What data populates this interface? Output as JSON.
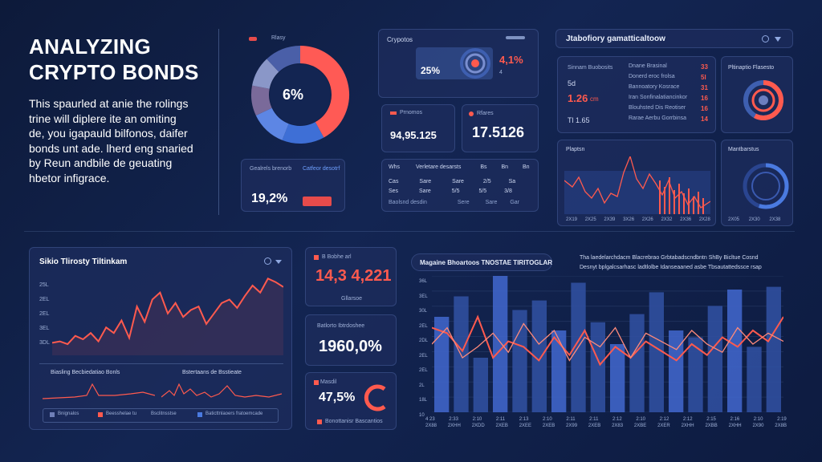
{
  "hero": {
    "title_line1": "ANALYZING",
    "title_line2": "CRYPTO BONDS",
    "body_lines": [
      "This spaurled at anie the rolings",
      "trine will diplere ite an omiting",
      "de, you igapauld bilfonos, daifer",
      "bonds unt ade. lherd eng snaried",
      "by Reun andbile de geuating",
      "hbetor infigrace."
    ]
  },
  "donut_panel": {
    "legend": "Rlasy",
    "center_value": "6%",
    "stat1": {
      "label": "Gealrels brenorb",
      "value": "19,2%"
    },
    "stat2": {
      "label": "Catfeor desotrf",
      "button": ""
    }
  },
  "crypto_panel": {
    "title": "Crypotos",
    "value_left": "25%",
    "value_right": "4,1%",
    "value_right_prefix": "4"
  },
  "metric1": {
    "label": "Prnomos",
    "value": "94,95.125"
  },
  "metric2": {
    "label": "Rfares",
    "value": "17.5126"
  },
  "mini_table": {
    "headers": [
      "Whs",
      "Verletare desarsts",
      "Bs",
      "Bn",
      "Bn"
    ],
    "rows": [
      [
        "Cas",
        "Sare",
        "Sare",
        "2/5",
        "Sa"
      ],
      [
        "Ses",
        "Sare",
        "5/5",
        "5/5",
        "3/8"
      ],
      [
        "Baolsnd desdin",
        "",
        "Sere",
        "Sare",
        "Gar"
      ]
    ]
  },
  "top_right_header": {
    "title": "Jtabofiory gamatticaltoow"
  },
  "ledger": {
    "summary_label": "Sinnam Buobosits",
    "small_value": "5d",
    "value_red": "1.26",
    "value_suffix": "cm",
    "footer": "Tl 1.65",
    "rows": [
      {
        "label": "Dnane Brasinal",
        "value": "33"
      },
      {
        "label": "Donerd eroc frolsa",
        "value": "5l"
      },
      {
        "label": "Bannoatory Kosrace",
        "value": "31"
      },
      {
        "label": "Iran Sonfinalatiancinkor",
        "value": "16"
      },
      {
        "label": "Blouhsted Dis Reotiser",
        "value": "16"
      },
      {
        "label": "Rarae Aerbu Gorrbinsa",
        "value": "14"
      }
    ]
  },
  "mini_donut_panel": {
    "title": "Pltinaptio Flasesto"
  },
  "line_panel_small": {
    "title": "Plaptsn",
    "x_ticks": [
      "2X19",
      "2X25",
      "2X39",
      "3X26",
      "2X26",
      "2X32",
      "2X36",
      "2X28"
    ]
  },
  "gauge_panel": {
    "title": "Mantbarstus",
    "x_ticks": [
      "2X05",
      "2X30",
      "2X38"
    ]
  },
  "left_chart": {
    "title": "Sikio Tlirosty Tiltinkam",
    "y_ticks": [
      "25L",
      "2EL",
      "2EL",
      "3EL",
      "3DL"
    ],
    "mini1_title": "Biasling Becbiedatiao Bonls",
    "mini2_title": "Bstertaans de Bsstieate",
    "legend": [
      "Bnignalos",
      "Beesshelae tu",
      "Bsclitnsstse",
      "Baticttnlaoers fratoemcade"
    ]
  },
  "stat_boxes": [
    {
      "label": "B Bobhe arl",
      "value": "14,3 4,221",
      "sub": "Gllarsoe"
    },
    {
      "label": "Batlorto Ibtrdoshee",
      "value": "1960,0%",
      "sub": ""
    },
    {
      "label": "Masdil",
      "value": "47,5%",
      "sub": "Bonottanisr Bascantios"
    }
  ],
  "main_chart": {
    "title": "Magaine Bhoartoos TNOSTAE TIRITOGLAR",
    "subtitle_line1": "Tha laedelarchdacm Blacrebrao Grbtabadscndbntn ShBy Bicltue Cosnd",
    "subtitle_line2": "Desnyt bplgalcsarhasc ladtlolbe Idanseaaned asbe Tbsautattedssce rsap",
    "y_ticks": [
      "36L",
      "3EL",
      "30L",
      "2EL",
      "2DL",
      "2EL",
      "2EL",
      "2L",
      "18L",
      "10"
    ],
    "x_ticks": [
      "4 23",
      "2:33",
      "2:10",
      "2:11",
      "2:13",
      "2:10",
      "2:11",
      "2:11",
      "2:12",
      "2:10",
      "2:12",
      "2:12",
      "2:15",
      "2:16",
      "2:10",
      "2:19"
    ],
    "x_ticks2": [
      "2X88",
      "2XHH",
      "2XDD",
      "2XEB",
      "2XEE",
      "2XEB",
      "2X99",
      "2XEB",
      "2X83",
      "2XBE",
      "2XER",
      "2XHH",
      "2XBB",
      "2XHH",
      "2X90",
      "2X8B"
    ]
  },
  "chart_data": [
    {
      "type": "pie",
      "title": "",
      "values": [
        42,
        14,
        12,
        10,
        10,
        12
      ],
      "colors": [
        "#ff5a55",
        "#3e6fd6",
        "#5d86e4",
        "#7a6a9a",
        "#8a97c8",
        "#4a5fa8"
      ]
    },
    {
      "type": "line",
      "title": "",
      "values": [
        248,
        250,
        246,
        258,
        253,
        262,
        250,
        270,
        262,
        280,
        255,
        300,
        278,
        310,
        320,
        290,
        305,
        285,
        295,
        300,
        275,
        290,
        305,
        310,
        298,
        315,
        330,
        320,
        340,
        335,
        328
      ]
    },
    {
      "type": "bar",
      "title": "",
      "values": [
        70,
        85,
        40,
        100,
        75,
        82,
        60,
        95,
        66,
        50,
        72,
        88,
        60,
        55,
        78,
        90,
        48,
        92
      ]
    },
    {
      "type": "line",
      "title": "",
      "series": [
        {
          "values": [
            62,
            58,
            45,
            70,
            40,
            52,
            48,
            38,
            55,
            42,
            60,
            35,
            48,
            40,
            52,
            45,
            38,
            50,
            42,
            55,
            48,
            60,
            52,
            70
          ]
        },
        {
          "values": [
            50,
            62,
            40,
            48,
            58,
            44,
            65,
            50,
            60,
            38,
            55,
            48,
            62,
            40,
            58,
            52,
            46,
            60,
            50,
            44,
            62,
            50,
            58,
            52
          ]
        }
      ]
    }
  ]
}
